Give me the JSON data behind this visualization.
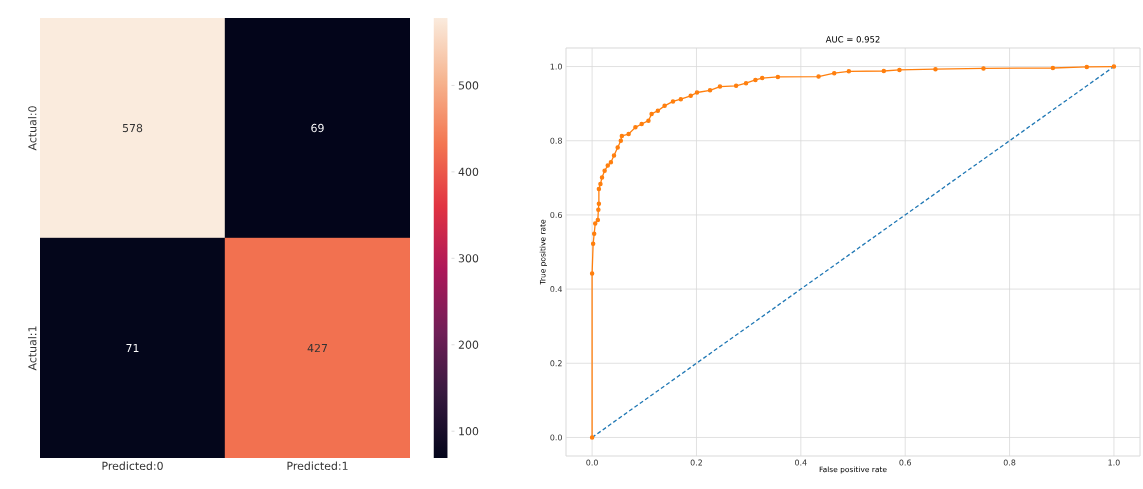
{
  "chart_data": [
    {
      "type": "heatmap",
      "categories": [
        "Predicted:0",
        "Predicted:1"
      ],
      "y_categories": [
        "Actual:0",
        "Actual:1"
      ],
      "cells": [
        [
          578,
          69
        ],
        [
          71,
          427
        ]
      ],
      "data_labels": true,
      "clim": [
        69,
        578
      ],
      "cticks": [
        100,
        200,
        300,
        400,
        500
      ]
    },
    {
      "type": "line",
      "title": "AUC = 0.952",
      "xlabel": "False positive rate",
      "ylabel": "True positive rate",
      "series": [
        {
          "color": "#ff7f0e",
          "marker": "circle",
          "line_style": "solid",
          "x": [
            0,
            0,
            0.002,
            0.004,
            0.006,
            0.011,
            0.012,
            0.013,
            0.013,
            0.016,
            0.019,
            0.024,
            0.03,
            0.036,
            0.042,
            0.049,
            0.055,
            0.057,
            0.07,
            0.083,
            0.095,
            0.108,
            0.114,
            0.126,
            0.139,
            0.155,
            0.17,
            0.189,
            0.201,
            0.226,
            0.245,
            0.276,
            0.295,
            0.313,
            0.326,
            0.356,
            0.434,
            0.464,
            0.492,
            0.559,
            0.589,
            0.658,
            0.75,
            0.883,
            0.948,
            1
          ],
          "values": [
            0,
            0.442,
            0.522,
            0.549,
            0.577,
            0.586,
            0.614,
            0.63,
            0.67,
            0.683,
            0.701,
            0.719,
            0.733,
            0.742,
            0.76,
            0.782,
            0.8,
            0.813,
            0.818,
            0.836,
            0.845,
            0.854,
            0.872,
            0.881,
            0.894,
            0.906,
            0.912,
            0.921,
            0.93,
            0.936,
            0.946,
            0.948,
            0.955,
            0.964,
            0.969,
            0.972,
            0.973,
            0.982,
            0.987,
            0.988,
            0.991,
            0.993,
            0.995,
            0.996,
            0.999,
            1
          ]
        },
        {
          "color": "#1f77b4",
          "marker": "none",
          "line_style": "dashed",
          "x": [
            0,
            1
          ],
          "values": [
            0,
            1
          ]
        }
      ],
      "xlim": [
        -0.05,
        1.05
      ],
      "ylim": [
        -0.05,
        1.05
      ],
      "xticks": [
        {
          "value": 0,
          "label": "0.0"
        },
        {
          "value": 0.2,
          "label": "0.2"
        },
        {
          "value": 0.4,
          "label": "0.4"
        },
        {
          "value": 0.6,
          "label": "0.6"
        },
        {
          "value": 0.8,
          "label": "0.8"
        },
        {
          "value": 1,
          "label": "1.0"
        }
      ],
      "yticks": [
        {
          "value": 0,
          "label": "0.0"
        },
        {
          "value": 0.2,
          "label": "0.2"
        },
        {
          "value": 0.4,
          "label": "0.4"
        },
        {
          "value": 0.6,
          "label": "0.6"
        },
        {
          "value": 0.8,
          "label": "0.8"
        },
        {
          "value": 1,
          "label": "1.0"
        }
      ],
      "grid": true
    }
  ]
}
